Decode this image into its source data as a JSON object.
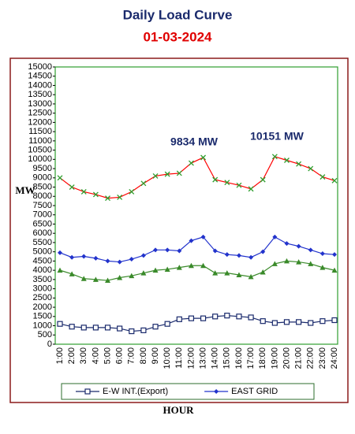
{
  "chart_data": {
    "type": "line",
    "title": "Daily Load Curve",
    "subtitle": "01-03-2024",
    "y_label": "MW",
    "x_label": "HOUR",
    "annotations": [
      "9834 MW",
      "10151 MW"
    ],
    "categories": [
      "1:00",
      "2:00",
      "3:00",
      "4:00",
      "5:00",
      "6:00",
      "7:00",
      "8:00",
      "9:00",
      "10:00",
      "11:00",
      "12:00",
      "13:00",
      "14:00",
      "15:00",
      "16:00",
      "17:00",
      "18:00",
      "19:00",
      "20:00",
      "21:00",
      "22:00",
      "23:00",
      "24:00"
    ],
    "ylim": [
      0,
      15000
    ],
    "yticks": [
      0,
      500,
      1000,
      1500,
      2000,
      2500,
      3000,
      3500,
      4000,
      4500,
      5000,
      5500,
      6000,
      6500,
      7000,
      7500,
      8000,
      8500,
      9000,
      9500,
      10000,
      10500,
      11000,
      11500,
      12000,
      12500,
      13000,
      13500,
      14000,
      14500,
      15000
    ],
    "series": [
      {
        "color": "#ff0000",
        "marker": "x",
        "marker_color": "#2e9e2e",
        "values": [
          9000,
          8500,
          8250,
          8100,
          7900,
          7950,
          8250,
          8700,
          9100,
          9200,
          9250,
          9800,
          10100,
          8900,
          8750,
          8600,
          8400,
          8900,
          10150,
          9950,
          9750,
          9500,
          9050,
          8850
        ]
      },
      {
        "name": "EAST GRID",
        "color": "#2233cc",
        "marker": "diamond",
        "marker_color": "#2233cc",
        "values": [
          4950,
          4700,
          4750,
          4650,
          4500,
          4450,
          4600,
          4800,
          5100,
          5100,
          5050,
          5600,
          5800,
          5050,
          4850,
          4800,
          4700,
          5000,
          5800,
          5450,
          5300,
          5100,
          4900,
          4850
        ]
      },
      {
        "color": "#3a8a2a",
        "marker": "triangle",
        "marker_color": "#3a8a2a",
        "values": [
          4000,
          3800,
          3550,
          3500,
          3450,
          3600,
          3700,
          3850,
          4000,
          4050,
          4150,
          4250,
          4250,
          3850,
          3850,
          3750,
          3650,
          3900,
          4350,
          4500,
          4450,
          4350,
          4150,
          4000
        ]
      },
      {
        "name": "E-W INT.(Export)",
        "color": "#1a2a6c",
        "marker": "square",
        "marker_color": "#1a2a6c",
        "values": [
          1100,
          950,
          900,
          900,
          900,
          850,
          700,
          750,
          950,
          1100,
          1350,
          1400,
          1400,
          1500,
          1550,
          1500,
          1450,
          1250,
          1150,
          1200,
          1200,
          1150,
          1250,
          1300
        ]
      }
    ]
  }
}
